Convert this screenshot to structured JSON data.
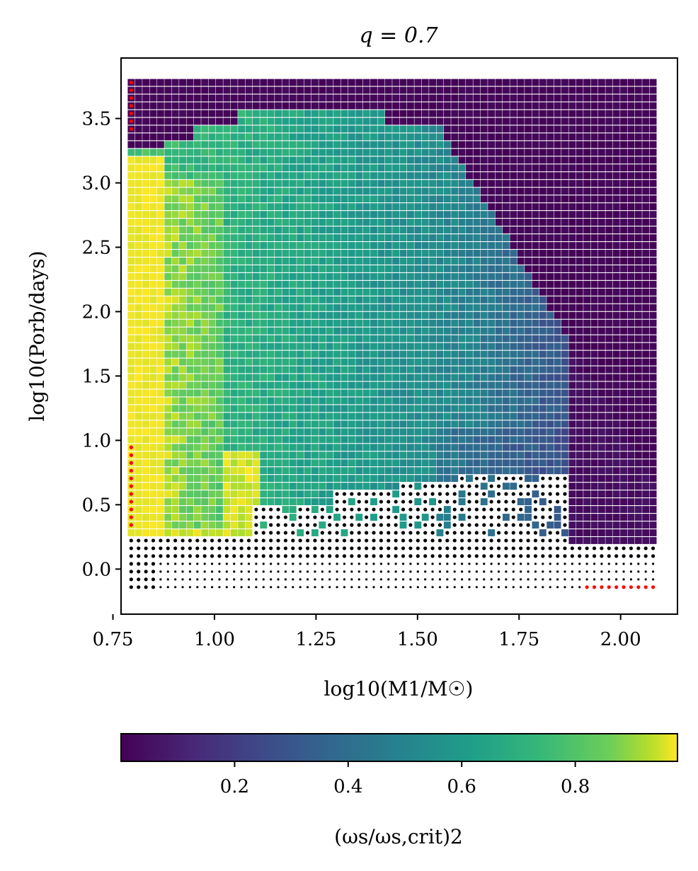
{
  "chart_data": {
    "type": "scatter",
    "title": "q = 0.7",
    "xlabel": "log10(M1/M☉)",
    "ylabel": "log10(Porb/days)",
    "xlim": [
      0.77,
      2.14
    ],
    "ylim": [
      -0.35,
      3.97
    ],
    "xticks": [
      "0.75",
      "1.00",
      "1.25",
      "1.50",
      "1.75",
      "2.00"
    ],
    "xtick_values": [
      0.75,
      1.0,
      1.25,
      1.5,
      1.75,
      2.0
    ],
    "yticks": [
      "0.0",
      "0.5",
      "1.0",
      "1.5",
      "2.0",
      "2.5",
      "3.0",
      "3.5"
    ],
    "ytick_values": [
      0.0,
      0.5,
      1.0,
      1.5,
      2.0,
      2.5,
      3.0,
      3.5
    ],
    "grid_x": {
      "start": 0.795,
      "end": 2.08,
      "count": 72
    },
    "grid_y": {
      "start": -0.14,
      "end": 3.78,
      "count": 66
    },
    "colorbar": {
      "label": "(ωs/ωs,crit)2",
      "range": [
        0.0,
        0.98
      ],
      "ticks": [
        "0.2",
        "0.4",
        "0.6",
        "0.8"
      ],
      "tick_values": [
        0.2,
        0.4,
        0.6,
        0.8
      ],
      "colormap": "viridis"
    },
    "legend_markers": {
      "failed_run": "#000000",
      "special_run": "#ff0000"
    },
    "regions_description_values": {
      "low_mass_fill": 0.95,
      "mid_region": 0.62,
      "high_mass_wide": 0.02
    }
  }
}
